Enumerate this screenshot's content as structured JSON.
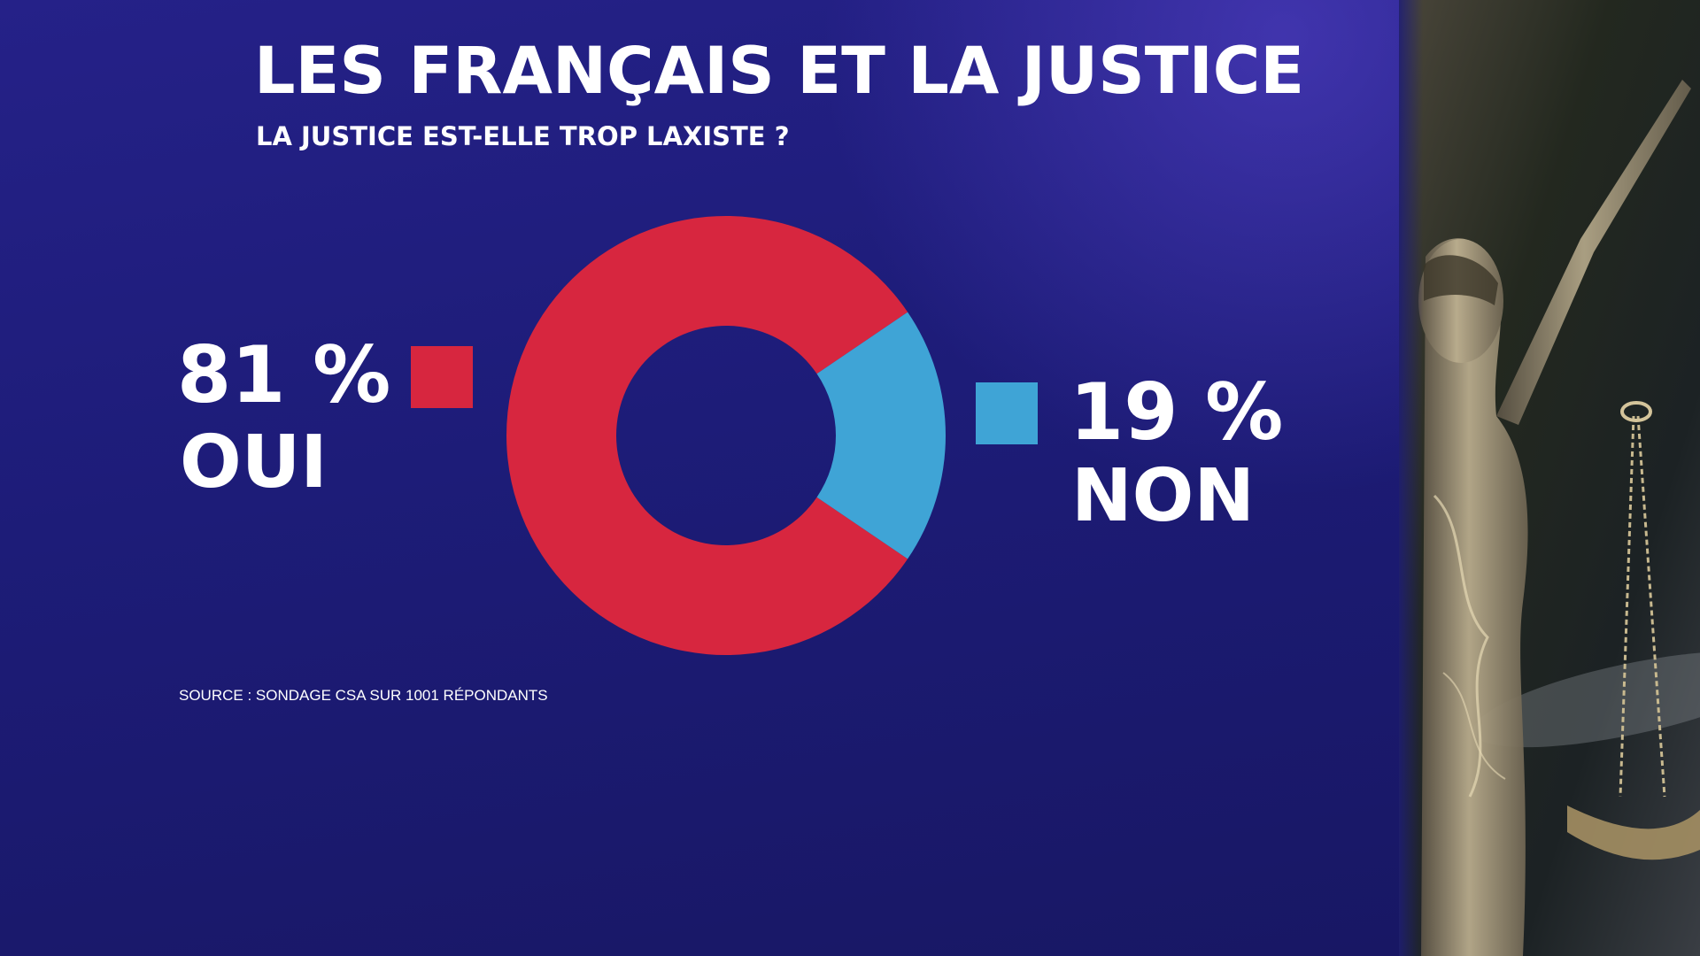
{
  "header": {
    "title": "LES FRANÇAIS ET LA JUSTICE",
    "subtitle": "LA JUSTICE EST-ELLE TROP LAXISTE ?"
  },
  "source": "SOURCE : SONDAGE CSA SUR 1001 RÉPONDANTS",
  "colors": {
    "oui": "#d7263f",
    "non": "#3fa4d6",
    "background": "#1d1c78"
  },
  "chart_data": {
    "type": "pie",
    "style": "donut",
    "title": "LES FRANÇAIS ET LA JUSTICE",
    "subtitle": "LA JUSTICE EST-ELLE TROP LAXISTE ?",
    "categories": [
      "OUI",
      "NON"
    ],
    "values": [
      81,
      19
    ],
    "unit": "%",
    "value_labels": [
      "81 %",
      "19 %"
    ],
    "colors": [
      "#d7263f",
      "#3fa4d6"
    ]
  },
  "legend": {
    "oui": {
      "value": "81 %",
      "label": "OUI"
    },
    "non": {
      "value": "19 %",
      "label": "NON"
    }
  },
  "background_image": {
    "icon": "lady-justice-statue-photo"
  }
}
